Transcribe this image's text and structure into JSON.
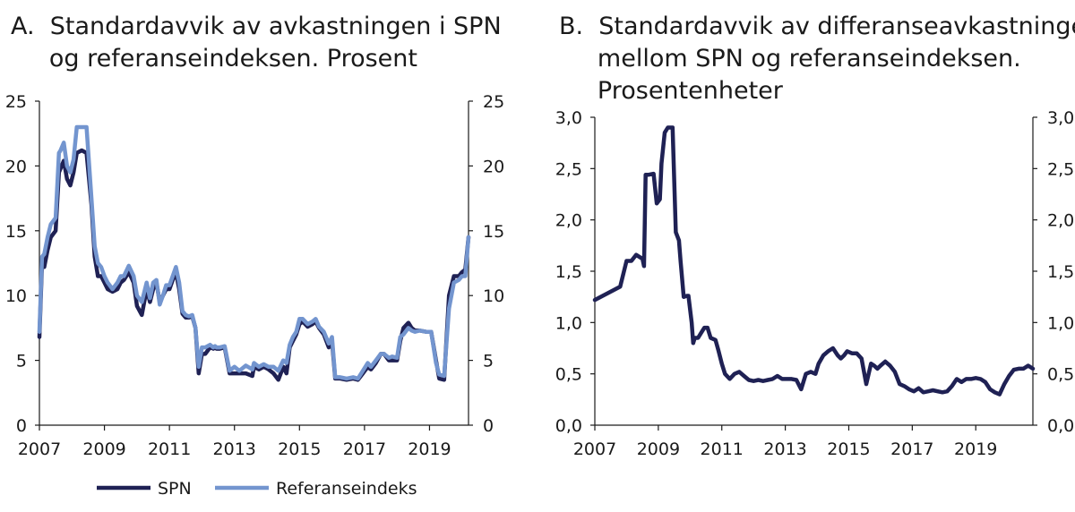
{
  "chart_data": [
    {
      "type": "line",
      "title_lines": [
        "A.  Standardavvik av avkastningen i SPN",
        "     og referanseindeksen. Prosent"
      ],
      "ylim": [
        0,
        25
      ],
      "yticks": [
        "0",
        "5",
        "10",
        "15",
        "20",
        "25"
      ],
      "xlim": [
        2007,
        2020.2
      ],
      "xticks": [
        "2007",
        "2009",
        "2011",
        "2013",
        "2015",
        "2017",
        "2019"
      ],
      "legend": [
        "SPN",
        "Referanseindeks"
      ],
      "colors": {
        "spn": "#1f2154",
        "ref": "#7395cf"
      },
      "series": [
        {
          "name": "SPN",
          "x": [
            2007.0,
            2007.08,
            2007.15,
            2007.25,
            2007.35,
            2007.5,
            2007.6,
            2007.65,
            2007.75,
            2007.85,
            2007.95,
            2008.05,
            2008.15,
            2008.3,
            2008.45,
            2008.6,
            2008.7,
            2008.8,
            2008.9,
            2009.0,
            2009.1,
            2009.25,
            2009.4,
            2009.5,
            2009.6,
            2009.75,
            2009.9,
            2010.0,
            2010.15,
            2010.3,
            2010.4,
            2010.5,
            2010.6,
            2010.7,
            2010.8,
            2010.9,
            2011.0,
            2011.1,
            2011.2,
            2011.3,
            2011.4,
            2011.5,
            2011.6,
            2011.7,
            2011.8,
            2011.9,
            2012.0,
            2012.1,
            2012.25,
            2012.35,
            2012.4,
            2012.45,
            2012.55,
            2012.7,
            2012.85,
            2013.0,
            2013.15,
            2013.35,
            2013.55,
            2013.6,
            2013.75,
            2013.9,
            2014.05,
            2014.2,
            2014.35,
            2014.5,
            2014.6,
            2014.7,
            2014.8,
            2014.9,
            2015.0,
            2015.1,
            2015.25,
            2015.4,
            2015.5,
            2015.6,
            2015.75,
            2015.9,
            2016.0,
            2016.1,
            2016.25,
            2016.45,
            2016.65,
            2016.8,
            2016.95,
            2017.1,
            2017.2,
            2017.35,
            2017.5,
            2017.6,
            2017.75,
            2017.85,
            2018.0,
            2018.1,
            2018.2,
            2018.35,
            2018.45,
            2018.55,
            2018.7,
            2018.9,
            2019.05,
            2019.2,
            2019.3,
            2019.45,
            2019.6,
            2019.75,
            2019.9,
            2020.0,
            2020.1,
            2020.2
          ],
          "y": [
            6.8,
            12.5,
            12.2,
            13.5,
            14.5,
            15,
            19.5,
            19.8,
            20.4,
            19,
            18.5,
            19.5,
            21,
            21.2,
            21,
            17,
            13,
            11.5,
            11.5,
            11,
            10.5,
            10.3,
            10.5,
            11,
            11.2,
            11.8,
            11,
            9.2,
            8.5,
            10.5,
            9.5,
            10.5,
            11,
            9.5,
            10,
            10.5,
            10.5,
            11.2,
            11.8,
            10.5,
            8.6,
            8.3,
            8.3,
            8.4,
            7.5,
            4,
            5.5,
            5.5,
            6,
            5.9,
            6,
            5.9,
            5.9,
            6,
            4,
            4,
            4,
            4,
            3.8,
            4.5,
            4.3,
            4.5,
            4.3,
            4,
            3.5,
            4.5,
            4,
            6,
            6.5,
            7,
            7.8,
            8,
            7.6,
            7.8,
            8,
            7.5,
            7,
            6,
            6.5,
            3.6,
            3.6,
            3.5,
            3.6,
            3.5,
            4,
            4.5,
            4.3,
            4.8,
            5.5,
            5.5,
            5,
            5,
            5,
            6.5,
            7.5,
            7.9,
            7.5,
            7.3,
            7.3,
            7.2,
            7.2,
            5,
            3.6,
            3.5,
            10,
            11.5,
            11.5,
            11.8,
            12,
            14.5
          ],
          "label": "SPN"
        },
        {
          "name": "Referanseindeks",
          "x": [
            2007.0,
            2007.08,
            2007.15,
            2007.25,
            2007.35,
            2007.5,
            2007.6,
            2007.65,
            2007.75,
            2007.85,
            2007.95,
            2008.05,
            2008.15,
            2008.3,
            2008.45,
            2008.6,
            2008.7,
            2008.8,
            2008.9,
            2009.0,
            2009.1,
            2009.25,
            2009.4,
            2009.5,
            2009.6,
            2009.75,
            2009.9,
            2010.0,
            2010.15,
            2010.3,
            2010.4,
            2010.5,
            2010.6,
            2010.7,
            2010.8,
            2010.9,
            2011.0,
            2011.1,
            2011.2,
            2011.3,
            2011.4,
            2011.5,
            2011.6,
            2011.7,
            2011.8,
            2011.9,
            2012.0,
            2012.1,
            2012.25,
            2012.35,
            2012.4,
            2012.45,
            2012.55,
            2012.7,
            2012.85,
            2013.0,
            2013.15,
            2013.35,
            2013.55,
            2013.6,
            2013.75,
            2013.9,
            2014.05,
            2014.2,
            2014.35,
            2014.5,
            2014.6,
            2014.7,
            2014.8,
            2014.9,
            2015.0,
            2015.1,
            2015.25,
            2015.4,
            2015.5,
            2015.6,
            2015.75,
            2015.9,
            2016.0,
            2016.1,
            2016.25,
            2016.45,
            2016.65,
            2016.8,
            2016.95,
            2017.1,
            2017.2,
            2017.35,
            2017.5,
            2017.6,
            2017.75,
            2017.85,
            2018.0,
            2018.1,
            2018.2,
            2018.35,
            2018.45,
            2018.55,
            2018.7,
            2018.9,
            2019.05,
            2019.2,
            2019.3,
            2019.45,
            2019.6,
            2019.75,
            2019.9,
            2020.0,
            2020.1,
            2020.2
          ],
          "y": [
            7.2,
            13,
            13.2,
            14.5,
            15.5,
            16,
            21,
            21.2,
            21.8,
            20,
            19.5,
            20.5,
            23,
            23,
            23,
            17.5,
            13.8,
            12.5,
            12.2,
            11.5,
            11,
            10.5,
            11,
            11.5,
            11.5,
            12.3,
            11.5,
            10,
            9.5,
            11,
            9.8,
            11,
            11.2,
            9.3,
            10,
            10.8,
            10.8,
            11.5,
            12.2,
            11,
            8.8,
            8.5,
            8.4,
            8.5,
            7.5,
            4.5,
            6,
            6,
            6.2,
            6,
            6.1,
            6,
            6,
            6.1,
            4.2,
            4.5,
            4.2,
            4.6,
            4.3,
            4.8,
            4.5,
            4.7,
            4.5,
            4.5,
            4.2,
            5,
            4.8,
            6.2,
            6.8,
            7.2,
            8.2,
            8.2,
            7.8,
            8,
            8.2,
            7.6,
            7.2,
            6.3,
            6.8,
            3.7,
            3.7,
            3.6,
            3.7,
            3.6,
            4.2,
            4.8,
            4.5,
            5,
            5.5,
            5.5,
            5.2,
            5.3,
            5.2,
            6.8,
            7,
            7.5,
            7.3,
            7.2,
            7.3,
            7.2,
            7.2,
            4.8,
            3.9,
            3.8,
            9,
            11,
            11.2,
            11.5,
            11.5,
            14.5
          ],
          "label": "Referanseindeks"
        }
      ]
    },
    {
      "type": "line",
      "title_lines": [
        "B.  Standardavvik av differanseavkastningen",
        "     mellom SPN og referanseindeksen.",
        "     Prosentenheter"
      ],
      "ylim": [
        0,
        3
      ],
      "yticks": [
        "0,0",
        "0,5",
        "1,0",
        "1,5",
        "2,0",
        "2,5",
        "3,0"
      ],
      "xlim": [
        2007,
        2020.8
      ],
      "xticks": [
        "2007",
        "2009",
        "2011",
        "2013",
        "2015",
        "2017",
        "2019"
      ],
      "colors": {
        "spn": "#1f2154"
      },
      "series": [
        {
          "name": "SPN vs referanseindeks",
          "x": [
            2007.0,
            2007.8,
            2008.0,
            2008.15,
            2008.3,
            2008.5,
            2008.55,
            2008.6,
            2008.65,
            2008.7,
            2008.85,
            2008.95,
            2009.05,
            2009.1,
            2009.2,
            2009.3,
            2009.45,
            2009.55,
            2009.65,
            2009.7,
            2009.8,
            2009.9,
            2009.95,
            2010.05,
            2010.1,
            2010.15,
            2010.25,
            2010.35,
            2010.45,
            2010.55,
            2010.65,
            2010.8,
            2010.9,
            2011.0,
            2011.1,
            2011.25,
            2011.4,
            2011.55,
            2011.7,
            2011.85,
            2012.0,
            2012.15,
            2012.3,
            2012.45,
            2012.6,
            2012.75,
            2012.9,
            2013.05,
            2013.2,
            2013.35,
            2013.5,
            2013.65,
            2013.8,
            2013.95,
            2014.05,
            2014.2,
            2014.35,
            2014.5,
            2014.65,
            2014.75,
            2014.85,
            2014.95,
            2015.1,
            2015.25,
            2015.4,
            2015.55,
            2015.7,
            2015.8,
            2015.9,
            2016.0,
            2016.15,
            2016.3,
            2016.45,
            2016.6,
            2016.75,
            2016.9,
            2017.05,
            2017.2,
            2017.35,
            2017.5,
            2017.65,
            2017.8,
            2017.95,
            2018.1,
            2018.25,
            2018.4,
            2018.55,
            2018.7,
            2018.85,
            2019.0,
            2019.15,
            2019.3,
            2019.45,
            2019.6,
            2019.75,
            2019.9,
            2020.05,
            2020.2,
            2020.35,
            2020.5,
            2020.65,
            2020.8
          ],
          "y": [
            1.22,
            1.35,
            1.6,
            1.6,
            1.66,
            1.62,
            1.55,
            2.44,
            2.44,
            2.44,
            2.45,
            2.16,
            2.2,
            2.55,
            2.85,
            2.9,
            2.9,
            1.88,
            1.8,
            1.6,
            1.25,
            1.26,
            1.26,
            1.0,
            0.8,
            0.85,
            0.85,
            0.9,
            0.95,
            0.95,
            0.85,
            0.83,
            0.72,
            0.6,
            0.5,
            0.45,
            0.5,
            0.52,
            0.48,
            0.44,
            0.43,
            0.44,
            0.43,
            0.44,
            0.45,
            0.48,
            0.45,
            0.45,
            0.45,
            0.44,
            0.35,
            0.5,
            0.52,
            0.5,
            0.6,
            0.68,
            0.72,
            0.75,
            0.68,
            0.65,
            0.68,
            0.72,
            0.7,
            0.7,
            0.65,
            0.4,
            0.6,
            0.58,
            0.55,
            0.58,
            0.62,
            0.58,
            0.52,
            0.4,
            0.38,
            0.35,
            0.33,
            0.36,
            0.32,
            0.33,
            0.34,
            0.33,
            0.32,
            0.33,
            0.38,
            0.45,
            0.42,
            0.45,
            0.45,
            0.46,
            0.45,
            0.42,
            0.35,
            0.32,
            0.3,
            0.4,
            0.48,
            0.54,
            0.55,
            0.55,
            0.58,
            0.55
          ],
          "label": "SPN"
        }
      ]
    }
  ]
}
